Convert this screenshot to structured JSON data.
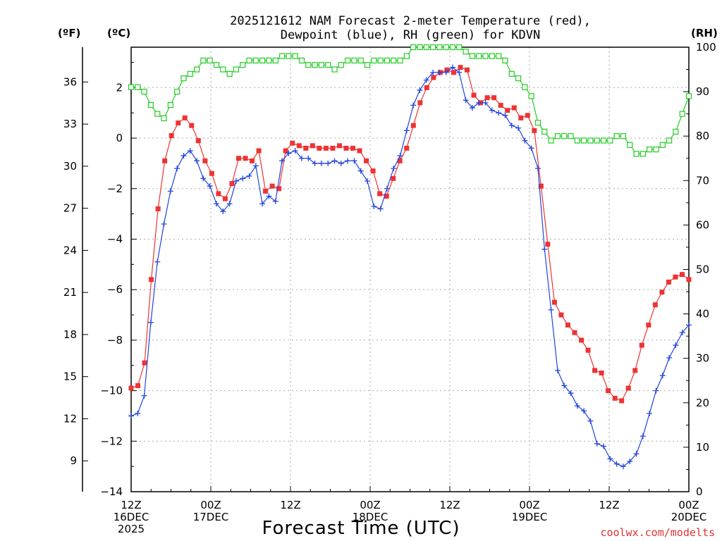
{
  "chart_data": {
    "type": "line",
    "title_lines": [
      "2025121612 NAM Forecast 2-meter Temperature (red),",
      "Dewpoint (blue), RH (green) for KDVN"
    ],
    "units": {
      "fahrenheit": "(ºF)",
      "celsius": "(ºC)",
      "rh": "(RH)"
    },
    "xlabel": "Forecast Time (UTC)",
    "credit": "coolwx.com/modelts",
    "x_range_hours": [
      0,
      84
    ],
    "x_ticks": [
      {
        "hour": 0,
        "lines": [
          "12Z",
          "16DEC",
          "2025"
        ]
      },
      {
        "hour": 12,
        "lines": [
          "00Z",
          "17DEC"
        ]
      },
      {
        "hour": 24,
        "lines": [
          "12Z"
        ]
      },
      {
        "hour": 36,
        "lines": [
          "00Z",
          "18DEC"
        ]
      },
      {
        "hour": 48,
        "lines": [
          "12Z"
        ]
      },
      {
        "hour": 60,
        "lines": [
          "00Z",
          "19DEC"
        ]
      },
      {
        "hour": 72,
        "lines": [
          "12Z"
        ]
      },
      {
        "hour": 84,
        "lines": [
          "00Z",
          "20DEC"
        ]
      }
    ],
    "c_range": [
      -14,
      3.6
    ],
    "c_ticks": [
      -14,
      -12,
      -10,
      -8,
      -6,
      -4,
      -2,
      0,
      2
    ],
    "f_ticks": [
      9,
      12,
      15,
      18,
      21,
      24,
      27,
      30,
      33,
      36
    ],
    "rh_range": [
      0,
      100
    ],
    "rh_ticks": [
      0,
      10,
      20,
      30,
      40,
      50,
      60,
      70,
      80,
      90,
      100
    ],
    "series": [
      {
        "name": "Temperature",
        "unit": "C",
        "color": "#ee3333",
        "marker": "filled-square",
        "values": [
          -9.9,
          -9.8,
          -8.9,
          -5.6,
          -2.8,
          -0.9,
          0.1,
          0.6,
          0.8,
          0.5,
          -0.1,
          -0.9,
          -1.4,
          -2.2,
          -2.4,
          -1.8,
          -0.8,
          -0.8,
          -0.9,
          -0.5,
          -2.1,
          -1.9,
          -2.0,
          -0.5,
          -0.2,
          -0.3,
          -0.4,
          -0.3,
          -0.4,
          -0.4,
          -0.4,
          -0.3,
          -0.4,
          -0.4,
          -0.5,
          -0.9,
          -1.3,
          -2.2,
          -2.3,
          -1.6,
          -0.9,
          -0.4,
          0.5,
          1.4,
          2.0,
          2.4,
          2.6,
          2.7,
          2.6,
          2.8,
          2.7,
          1.7,
          1.4,
          1.6,
          1.6,
          1.3,
          1.1,
          1.2,
          0.8,
          0.9,
          0.3,
          -1.9,
          -4.2,
          -6.5,
          -7.0,
          -7.4,
          -7.7,
          -8.0,
          -8.4,
          -9.2,
          -9.3,
          -10.0,
          -10.3,
          -10.4,
          -9.9,
          -9.2,
          -8.2,
          -7.4,
          -6.6,
          -6.1,
          -5.7,
          -5.5,
          -5.4,
          -5.6
        ]
      },
      {
        "name": "Dewpoint",
        "unit": "C",
        "color": "#2244dd",
        "marker": "plus",
        "values": [
          -11.0,
          -10.9,
          -10.2,
          -7.3,
          -4.9,
          -3.4,
          -2.1,
          -1.2,
          -0.7,
          -0.5,
          -0.9,
          -1.6,
          -1.9,
          -2.6,
          -2.9,
          -2.6,
          -1.7,
          -1.6,
          -1.5,
          -1.1,
          -2.6,
          -2.3,
          -2.5,
          -0.9,
          -0.6,
          -0.5,
          -0.8,
          -0.8,
          -1.0,
          -1.0,
          -1.0,
          -0.9,
          -1.0,
          -0.9,
          -0.9,
          -1.3,
          -1.7,
          -2.7,
          -2.8,
          -2.0,
          -1.2,
          -0.7,
          0.3,
          1.3,
          1.9,
          2.3,
          2.6,
          2.6,
          2.6,
          2.8,
          2.6,
          1.5,
          1.2,
          1.4,
          1.4,
          1.1,
          1.0,
          0.9,
          0.5,
          0.4,
          -0.1,
          -0.4,
          -1.2,
          -4.4,
          -6.8,
          -9.2,
          -9.8,
          -10.1,
          -10.6,
          -10.8,
          -11.2,
          -12.1,
          -12.2,
          -12.7,
          -12.9,
          -13.0,
          -12.8,
          -12.5,
          -11.8,
          -10.9,
          -10.0,
          -9.4,
          -8.7,
          -8.2,
          -7.7,
          -7.4
        ]
      },
      {
        "name": "RH",
        "unit": "%",
        "color": "#22cc22",
        "marker": "open-square",
        "values": [
          91,
          91,
          90,
          87,
          85,
          84,
          87,
          90,
          93,
          94,
          95,
          97,
          97,
          96,
          95,
          94,
          95,
          96,
          97,
          97,
          97,
          97,
          97,
          98,
          98,
          98,
          97,
          96,
          96,
          96,
          96,
          95,
          96,
          97,
          97,
          97,
          96,
          97,
          97,
          97,
          97,
          97,
          98,
          100,
          100,
          100,
          100,
          100,
          100,
          100,
          100,
          99,
          98,
          98,
          98,
          98,
          98,
          97,
          94,
          93,
          91,
          89,
          83,
          81,
          79,
          80,
          80,
          80,
          79,
          79,
          79,
          79,
          79,
          79,
          80,
          80,
          78,
          76,
          76,
          77,
          77,
          78,
          79,
          81,
          85,
          89
        ]
      }
    ]
  }
}
